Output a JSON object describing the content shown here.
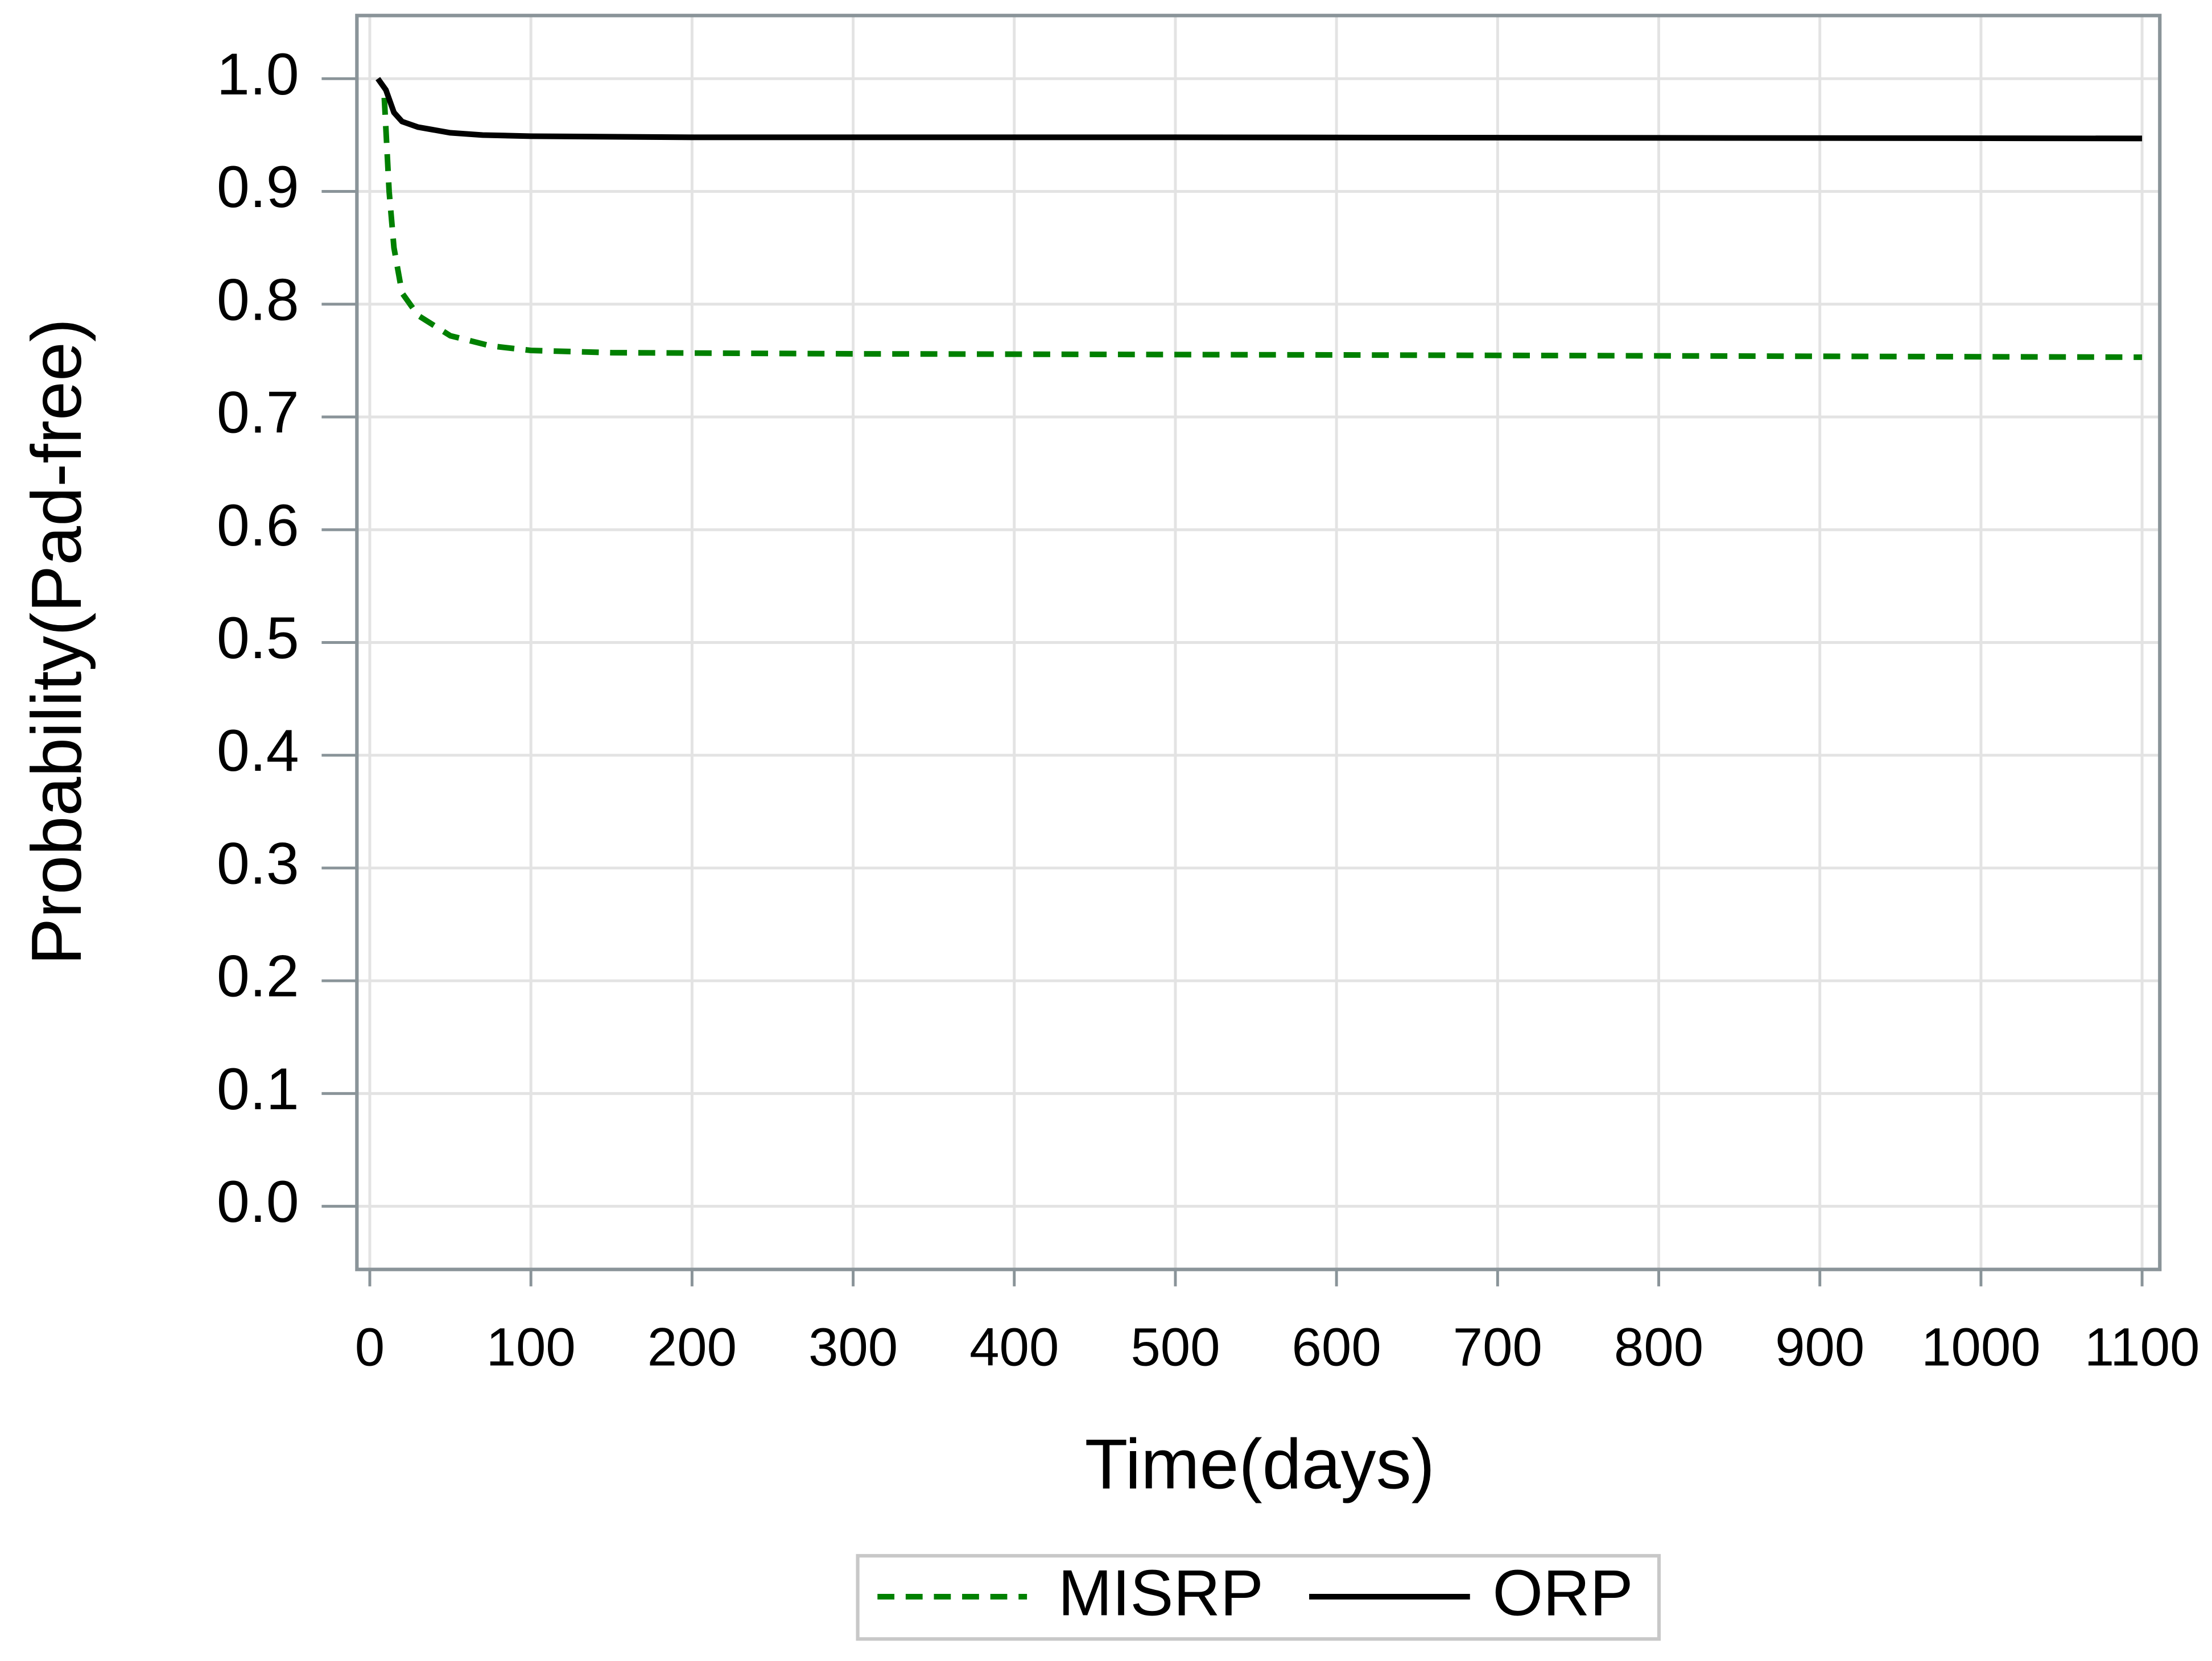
{
  "chart_data": {
    "type": "line",
    "xlabel": "Time(days)",
    "ylabel": "Probability(Pad-free)",
    "xlim": [
      -8,
      1111
    ],
    "ylim": [
      -0.056,
      1.056
    ],
    "xticks": [
      0,
      100,
      200,
      300,
      400,
      500,
      600,
      700,
      800,
      900,
      1000,
      1100
    ],
    "yticks": [
      {
        "value": 0,
        "label": "0.0"
      },
      0.1,
      0.2,
      0.3,
      0.4,
      0.5,
      0.6,
      0.7,
      0.8,
      0.9,
      {
        "value": 1,
        "label": "1.0"
      }
    ],
    "grid": true,
    "legend": "bottom",
    "series": [
      {
        "name": "MISRP",
        "color": "#008000",
        "dashed": true,
        "x": [
          9,
          12,
          15,
          20,
          30,
          50,
          75,
          100,
          150,
          300,
          600,
          1100
        ],
        "values": [
          0.983,
          0.9,
          0.85,
          0.81,
          0.79,
          0.772,
          0.763,
          0.759,
          0.757,
          0.756,
          0.755,
          0.753
        ]
      },
      {
        "name": "ORP",
        "color": "#000000",
        "dashed": false,
        "x": [
          5,
          10,
          15,
          20,
          30,
          50,
          70,
          100,
          200,
          500,
          1100
        ],
        "values": [
          1.0,
          0.99,
          0.97,
          0.962,
          0.957,
          0.952,
          0.95,
          0.949,
          0.948,
          0.948,
          0.947
        ]
      }
    ]
  }
}
